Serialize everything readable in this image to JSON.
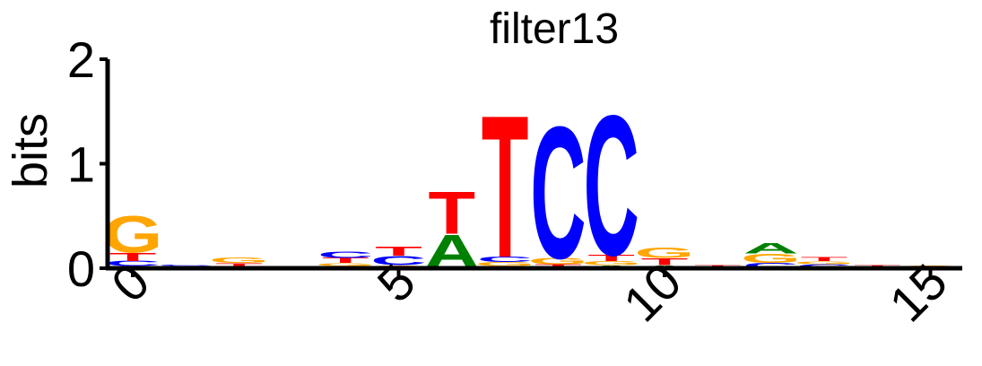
{
  "chart_data": {
    "type": "sequence-logo",
    "title": "filter13",
    "ylabel": "bits",
    "ylim": [
      0,
      2
    ],
    "yticks": [
      "0",
      "1",
      "2"
    ],
    "xlim": [
      -0.5,
      15.5
    ],
    "xticks": [
      {
        "value": 0,
        "label": "0"
      },
      {
        "value": 5,
        "label": "5"
      },
      {
        "value": 10,
        "label": "10"
      },
      {
        "value": 15,
        "label": "15"
      }
    ],
    "colors": {
      "A": "#008000",
      "C": "#0000ff",
      "G": "#ffa500",
      "T": "#ff0000"
    },
    "positions": [
      {
        "pos": 0,
        "stack": [
          {
            "base": "A",
            "bits": 0.02
          },
          {
            "base": "C",
            "bits": 0.05
          },
          {
            "base": "T",
            "bits": 0.08
          },
          {
            "base": "G",
            "bits": 0.36
          }
        ]
      },
      {
        "pos": 1,
        "stack": [
          {
            "base": "A",
            "bits": 0.02
          },
          {
            "base": "C",
            "bits": 0.01
          }
        ]
      },
      {
        "pos": 2,
        "stack": [
          {
            "base": "A",
            "bits": 0.01
          },
          {
            "base": "T",
            "bits": 0.04
          },
          {
            "base": "G",
            "bits": 0.05
          }
        ]
      },
      {
        "pos": 3,
        "stack": [
          {
            "base": "C",
            "bits": 0.01
          },
          {
            "base": "A",
            "bits": 0.01
          }
        ]
      },
      {
        "pos": 4,
        "stack": [
          {
            "base": "A",
            "bits": 0.02
          },
          {
            "base": "G",
            "bits": 0.03
          },
          {
            "base": "T",
            "bits": 0.05
          },
          {
            "base": "C",
            "bits": 0.06
          }
        ]
      },
      {
        "pos": 5,
        "stack": [
          {
            "base": "G",
            "bits": 0.03
          },
          {
            "base": "C",
            "bits": 0.09
          },
          {
            "base": "T",
            "bits": 0.09
          }
        ]
      },
      {
        "pos": 6,
        "stack": [
          {
            "base": "A",
            "bits": 0.33
          },
          {
            "base": "T",
            "bits": 0.42
          }
        ]
      },
      {
        "pos": 7,
        "stack": [
          {
            "base": "A",
            "bits": 0.02
          },
          {
            "base": "G",
            "bits": 0.04
          },
          {
            "base": "C",
            "bits": 0.05
          },
          {
            "base": "T",
            "bits": 1.4
          }
        ]
      },
      {
        "pos": 8,
        "stack": [
          {
            "base": "T",
            "bits": 0.04
          },
          {
            "base": "G",
            "bits": 0.06
          },
          {
            "base": "C",
            "bits": 1.3
          }
        ]
      },
      {
        "pos": 9,
        "stack": [
          {
            "base": "A",
            "bits": 0.03
          },
          {
            "base": "G",
            "bits": 0.04
          },
          {
            "base": "T",
            "bits": 0.06
          },
          {
            "base": "C",
            "bits": 1.38
          }
        ]
      },
      {
        "pos": 10,
        "stack": [
          {
            "base": "A",
            "bits": 0.03
          },
          {
            "base": "T",
            "bits": 0.07
          },
          {
            "base": "G",
            "bits": 0.1
          }
        ]
      },
      {
        "pos": 11,
        "stack": [
          {
            "base": "C",
            "bits": 0.01
          },
          {
            "base": "T",
            "bits": 0.02
          }
        ]
      },
      {
        "pos": 12,
        "stack": [
          {
            "base": "C",
            "bits": 0.05
          },
          {
            "base": "G",
            "bits": 0.09
          },
          {
            "base": "A",
            "bits": 0.1
          }
        ]
      },
      {
        "pos": 13,
        "stack": [
          {
            "base": "C",
            "bits": 0.04
          },
          {
            "base": "G",
            "bits": 0.03
          },
          {
            "base": "T",
            "bits": 0.04
          }
        ]
      },
      {
        "pos": 14,
        "stack": [
          {
            "base": "C",
            "bits": 0.01
          },
          {
            "base": "T",
            "bits": 0.02
          }
        ]
      },
      {
        "pos": 15,
        "stack": [
          {
            "base": "G",
            "bits": 0.03
          }
        ]
      }
    ]
  }
}
